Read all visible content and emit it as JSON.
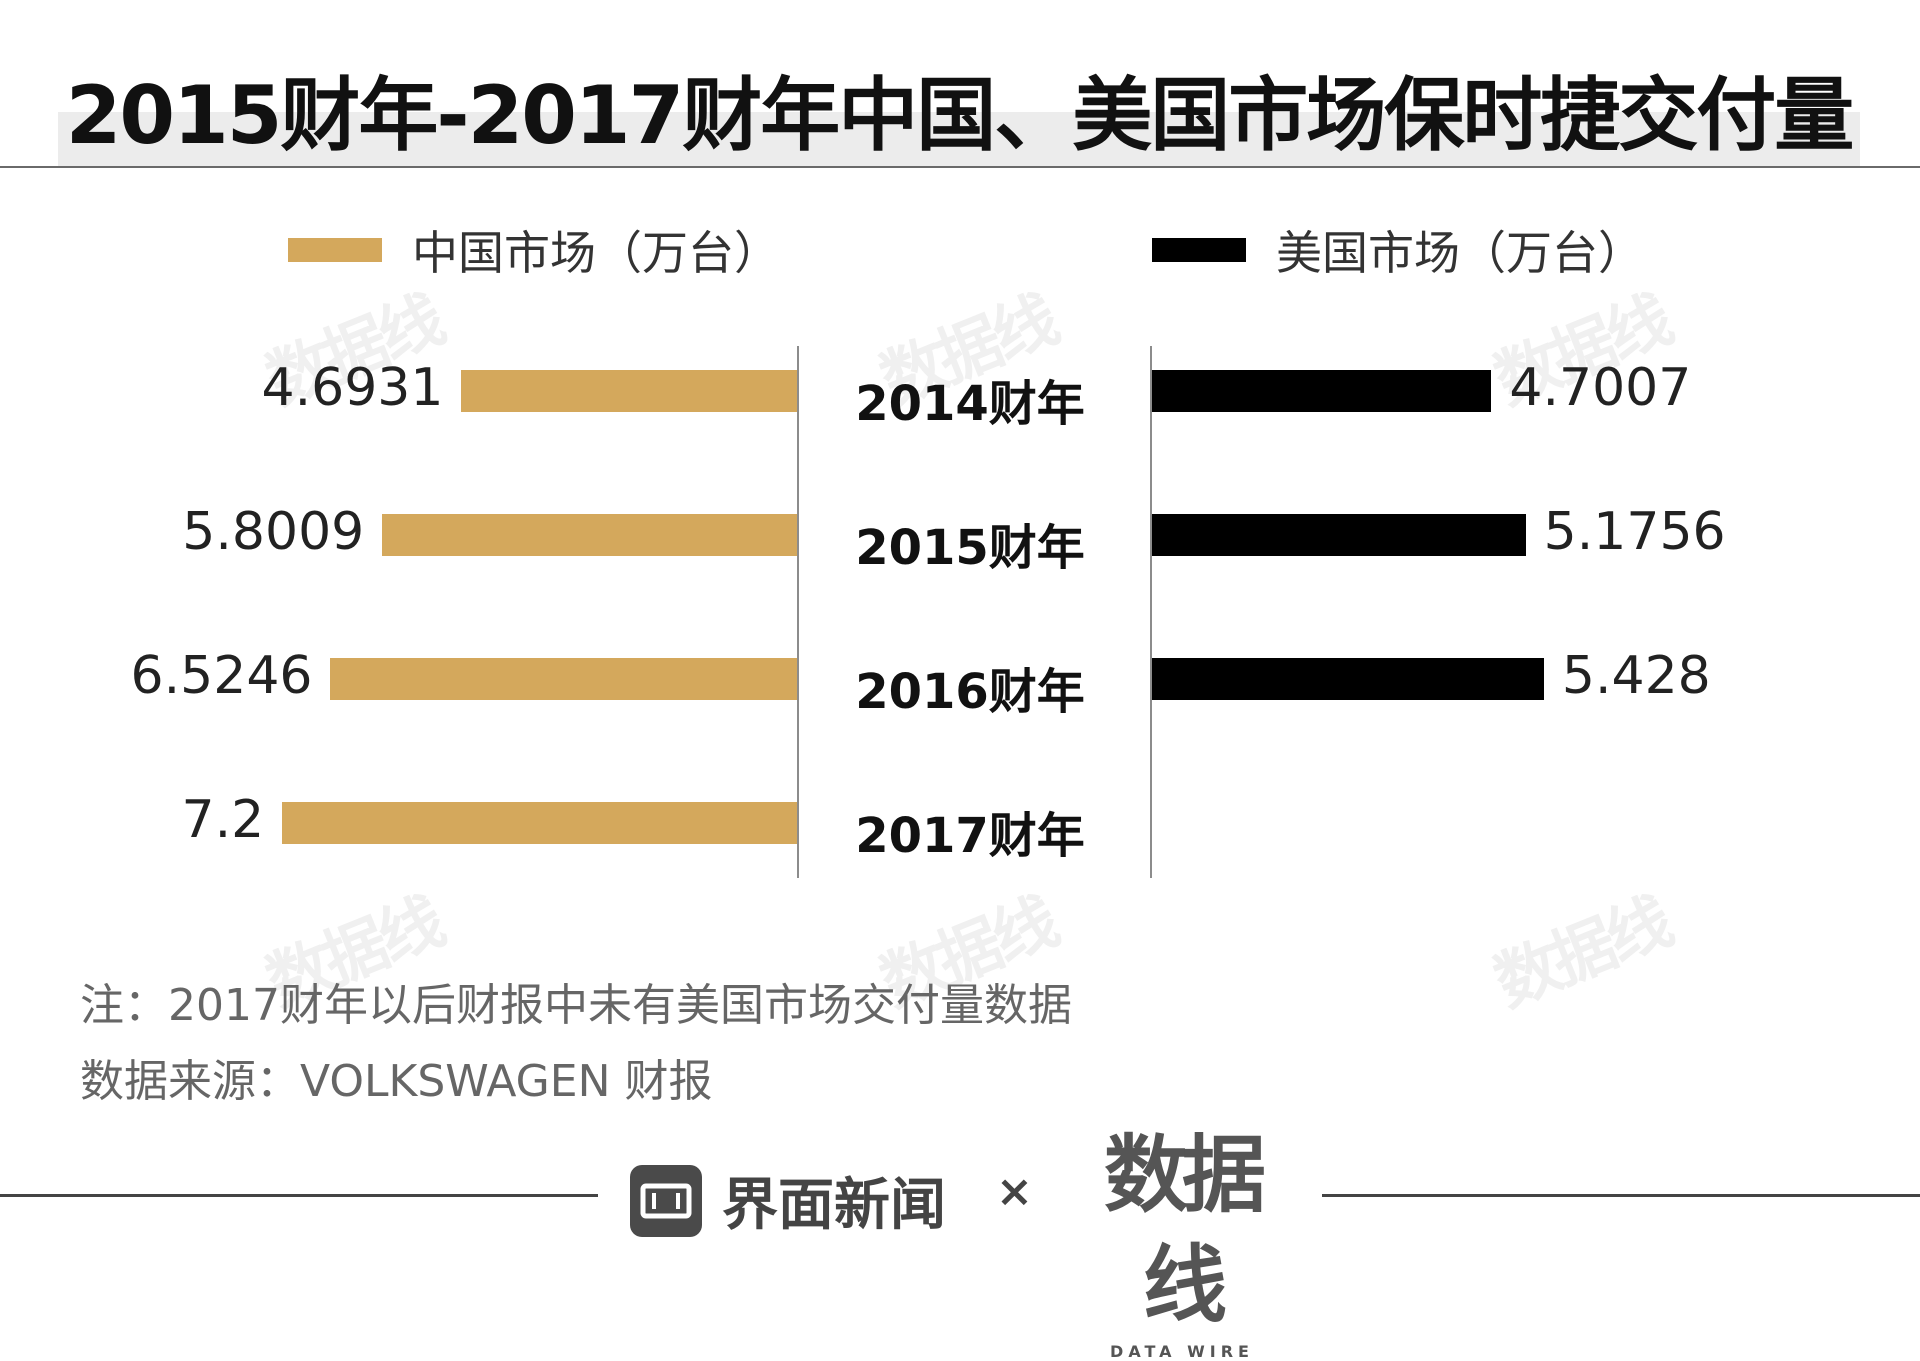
{
  "title": "2015财年-2017财年中国、美国市场保时捷交付量",
  "legend": {
    "china": "中国市场（万台）",
    "us": "美国市场（万台）"
  },
  "colors": {
    "china": "#d4a85c",
    "us": "#000000"
  },
  "chart_data": {
    "type": "bar",
    "orientation": "horizontal-butterfly",
    "categories": [
      "2014财年",
      "2015财年",
      "2016财年",
      "2017财年"
    ],
    "series": [
      {
        "name": "中国市场（万台）",
        "values": [
          4.6931,
          5.8009,
          6.5246,
          7.2
        ],
        "labels": [
          "4.6931",
          "5.8009",
          "6.5246",
          "7.2"
        ]
      },
      {
        "name": "美国市场（万台）",
        "values": [
          4.7007,
          5.1756,
          5.428,
          null
        ],
        "labels": [
          "4.7007",
          "5.1756",
          "5.428",
          ""
        ]
      }
    ],
    "title": "2015财年-2017财年中国、美国市场保时捷交付量",
    "xlabel": "",
    "ylabel": ""
  },
  "notes": {
    "note": "注：2017财年以后财报中未有美国市场交付量数据",
    "source": "数据来源：VOLKSWAGEN 财报"
  },
  "footer": {
    "brand1": "界面新闻",
    "times": "×",
    "brand2": "数据线",
    "brand2_sub": "DATA WIRE"
  },
  "watermark": "数据线"
}
